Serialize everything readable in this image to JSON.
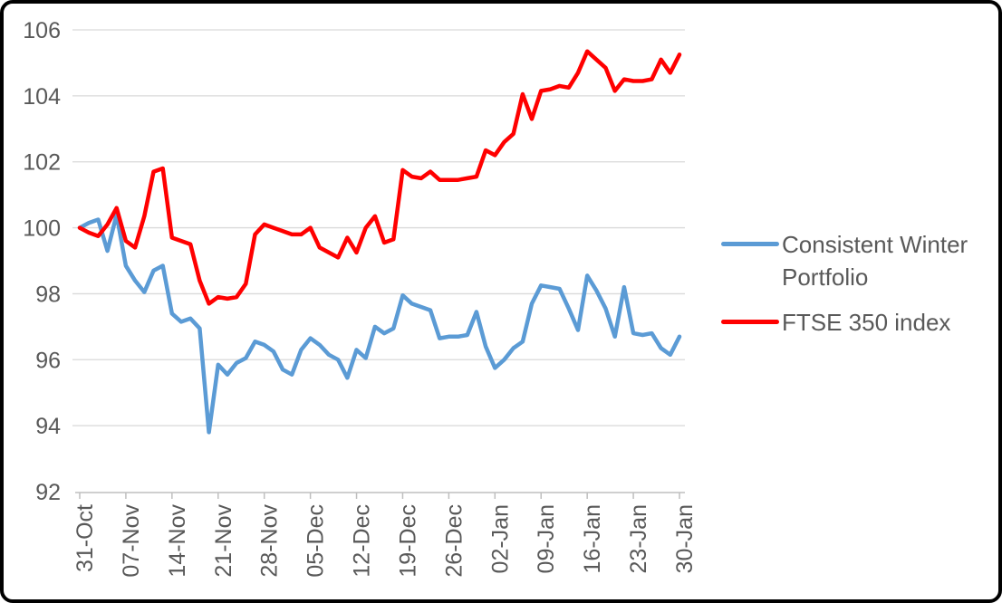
{
  "chart_data": {
    "type": "line",
    "title": "",
    "xlabel": "",
    "ylabel": "",
    "ylim": [
      92,
      106
    ],
    "y_ticks": [
      92,
      94,
      96,
      98,
      100,
      102,
      104,
      106
    ],
    "grid": true,
    "legend_position": "right",
    "x_tick_every": 5,
    "x_tick_labels": [
      "31-Oct",
      "07-Nov",
      "14-Nov",
      "21-Nov",
      "28-Nov",
      "05-Dec",
      "12-Dec",
      "19-Dec",
      "26-Dec",
      "02-Jan",
      "09-Jan",
      "16-Jan",
      "23-Jan",
      "30-Jan"
    ],
    "series": [
      {
        "name": "Consistent Winter Portfolio",
        "color": "#5B9BD5",
        "values": [
          100,
          100.15,
          100.25,
          99.3,
          100.4,
          98.85,
          98.4,
          98.05,
          98.7,
          98.85,
          97.4,
          97.15,
          97.25,
          96.95,
          93.8,
          95.85,
          95.55,
          95.9,
          96.05,
          96.55,
          96.45,
          96.25,
          95.7,
          95.55,
          96.3,
          96.65,
          96.45,
          96.15,
          96,
          95.45,
          96.3,
          96.05,
          97,
          96.8,
          96.95,
          97.95,
          97.7,
          97.6,
          97.5,
          96.65,
          96.7,
          96.7,
          96.75,
          97.45,
          96.4,
          95.75,
          96,
          96.35,
          96.55,
          97.7,
          98.25,
          98.2,
          98.15,
          97.55,
          96.9,
          98.55,
          98.1,
          97.55,
          96.7,
          98.2,
          96.8,
          96.75,
          96.8,
          96.35,
          96.15,
          96.7
        ]
      },
      {
        "name": "FTSE 350 index",
        "color": "#FF0000",
        "values": [
          100,
          99.85,
          99.75,
          100.1,
          100.6,
          99.6,
          99.4,
          100.35,
          101.7,
          101.8,
          99.7,
          99.6,
          99.5,
          98.4,
          97.7,
          97.9,
          97.85,
          97.9,
          98.3,
          99.8,
          100.1,
          100,
          99.9,
          99.8,
          99.8,
          100,
          99.4,
          99.25,
          99.1,
          99.7,
          99.25,
          100,
          100.35,
          99.55,
          99.65,
          101.75,
          101.55,
          101.5,
          101.7,
          101.45,
          101.45,
          101.45,
          101.5,
          101.55,
          102.35,
          102.2,
          102.6,
          102.85,
          104.05,
          103.3,
          104.15,
          104.2,
          104.3,
          104.25,
          104.7,
          105.35,
          105.1,
          104.85,
          104.15,
          104.5,
          104.45,
          104.45,
          104.5,
          105.1,
          104.7,
          105.25
        ]
      }
    ]
  },
  "colors": {
    "text": "#595959",
    "gridline": "#D9D9D9",
    "axis": "#BFBFBF",
    "background": "#FFFFFF",
    "frame": "#000000"
  }
}
